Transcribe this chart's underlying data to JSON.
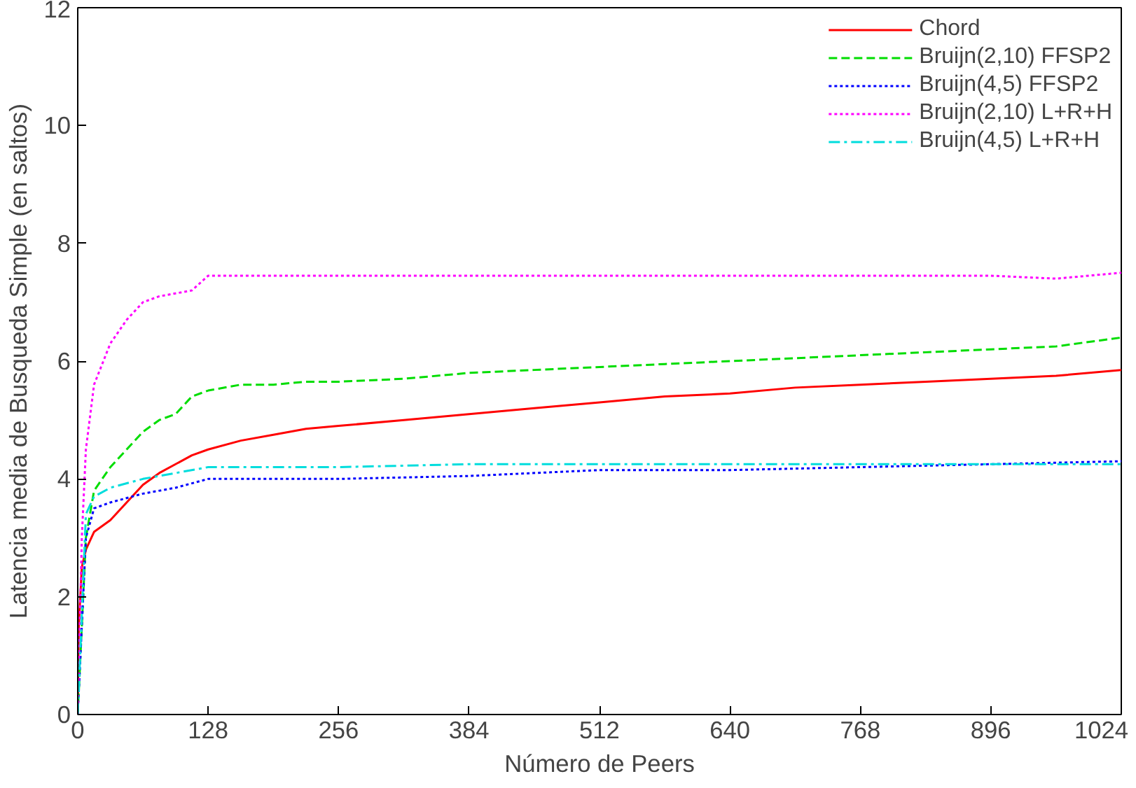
{
  "chart_data": {
    "type": "line",
    "xlabel": "Número de Peers",
    "ylabel": "Latencia media de Busqueda Simple (en saltos)",
    "xlim": [
      0,
      1024
    ],
    "xticks": [
      0,
      128,
      256,
      384,
      512,
      640,
      768,
      896,
      1024
    ],
    "ylim": [
      0,
      12
    ],
    "yticks": [
      0,
      2,
      4,
      6,
      8,
      10,
      12
    ],
    "grid": false,
    "legend": "top right",
    "marker": "none",
    "series": [
      {
        "name": "Chord",
        "color": "#ff0000",
        "line_style": "solid",
        "x": [
          0,
          1,
          4,
          8,
          16,
          32,
          48,
          64,
          80,
          96,
          112,
          128,
          160,
          192,
          224,
          256,
          320,
          384,
          448,
          512,
          576,
          640,
          704,
          768,
          832,
          896,
          960,
          1024
        ],
        "values": [
          0,
          1.5,
          2.5,
          2.8,
          3.1,
          3.3,
          3.6,
          3.9,
          4.1,
          4.25,
          4.4,
          4.5,
          4.65,
          4.75,
          4.85,
          4.9,
          5.0,
          5.1,
          5.2,
          5.3,
          5.4,
          5.45,
          5.55,
          5.6,
          5.65,
          5.7,
          5.75,
          5.85
        ]
      },
      {
        "name": "Bruijn(2,10) FFSP2",
        "color": "#00dd00",
        "line_style": "dashed",
        "x": [
          0,
          8,
          16,
          32,
          48,
          64,
          80,
          96,
          112,
          128,
          160,
          192,
          224,
          256,
          320,
          384,
          448,
          512,
          576,
          640,
          704,
          768,
          832,
          896,
          960,
          1024
        ],
        "values": [
          0,
          3.0,
          3.8,
          4.2,
          4.5,
          4.8,
          5.0,
          5.1,
          5.4,
          5.5,
          5.6,
          5.6,
          5.65,
          5.65,
          5.7,
          5.8,
          5.85,
          5.9,
          5.95,
          6.0,
          6.05,
          6.1,
          6.15,
          6.2,
          6.25,
          6.4
        ]
      },
      {
        "name": "Bruijn(4,5) FFSP2",
        "color": "#0000ff",
        "line_style": "dotted",
        "x": [
          0,
          8,
          16,
          32,
          64,
          96,
          128,
          192,
          256,
          384,
          512,
          640,
          768,
          896,
          1024
        ],
        "values": [
          0,
          3.0,
          3.5,
          3.6,
          3.75,
          3.85,
          4.0,
          4.0,
          4.0,
          4.05,
          4.15,
          4.15,
          4.2,
          4.25,
          4.3
        ]
      },
      {
        "name": "Bruijn(2,10) L+R+H",
        "color": "#ff00ff",
        "line_style": "dotted",
        "x": [
          0,
          4,
          8,
          16,
          32,
          48,
          64,
          80,
          96,
          112,
          128,
          192,
          256,
          384,
          512,
          640,
          768,
          896,
          960,
          1024
        ],
        "values": [
          0,
          3.0,
          4.5,
          5.6,
          6.3,
          6.7,
          7.0,
          7.1,
          7.15,
          7.2,
          7.45,
          7.45,
          7.45,
          7.45,
          7.45,
          7.45,
          7.45,
          7.45,
          7.4,
          7.5
        ]
      },
      {
        "name": "Bruijn(4,5) L+R+H",
        "color": "#00dddd",
        "line_style": "dashdot",
        "x": [
          0,
          8,
          16,
          32,
          64,
          96,
          128,
          256,
          384,
          512,
          640,
          768,
          896,
          1024
        ],
        "values": [
          0,
          3.4,
          3.7,
          3.85,
          4.0,
          4.1,
          4.2,
          4.2,
          4.25,
          4.25,
          4.25,
          4.25,
          4.25,
          4.25
        ]
      }
    ]
  }
}
